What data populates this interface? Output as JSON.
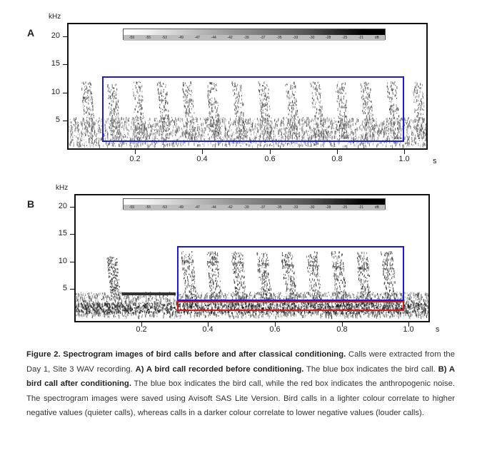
{
  "panels": [
    {
      "label": "A",
      "y_unit": "kHz",
      "x_unit": "s",
      "y_ticks": [
        "20",
        "15",
        "10",
        "5"
      ],
      "x_ticks": [
        "0.2",
        "0.4",
        "0.6",
        "0.8",
        "1.0"
      ],
      "colorbar_labels": [
        "-59",
        "-55",
        "-53",
        "-49",
        "-47",
        "-44",
        "-42",
        "-39",
        "-37",
        "-35",
        "-33",
        "-30",
        "-28",
        "-25",
        "-21",
        "dB"
      ],
      "boxes": [
        {
          "color": "#1a1ad9",
          "meaning": "bird call"
        }
      ]
    },
    {
      "label": "B",
      "y_unit": "kHz",
      "x_unit": "s",
      "y_ticks": [
        "20",
        "15",
        "10",
        "5"
      ],
      "x_ticks": [
        "0.2",
        "0.4",
        "0.6",
        "0.8",
        "1.0"
      ],
      "colorbar_labels": [
        "-59",
        "-55",
        "-53",
        "-49",
        "-47",
        "-44",
        "-42",
        "-39",
        "-37",
        "-35",
        "-33",
        "-30",
        "-28",
        "-25",
        "-21",
        "dB"
      ],
      "boxes": [
        {
          "color": "#1a1ad9",
          "meaning": "bird call"
        },
        {
          "color": "#cc1a1a",
          "meaning": "anthropogenic noise"
        }
      ]
    }
  ],
  "caption": {
    "p1_bold": "Figure 2. Spectrogram images of bird calls before and after classical conditioning.",
    "p2": " Calls were extracted from the Day 1, Site 3 WAV recording. ",
    "p3_bold": "A) A bird call recorded before conditioning.",
    "p4": " The blue box indicates the bird call. ",
    "p5_bold": "B) A bird call after conditioning.",
    "p6": " The blue box indicates the bird call, while the red box indicates the anthropogenic noise. The spectrogram images were saved using Avisoft SAS Lite Version. Bird calls in a lighter colour correlate to higher negative values (quieter calls), whereas calls in a darker colour correlate to lower negative values (louder calls)."
  }
}
